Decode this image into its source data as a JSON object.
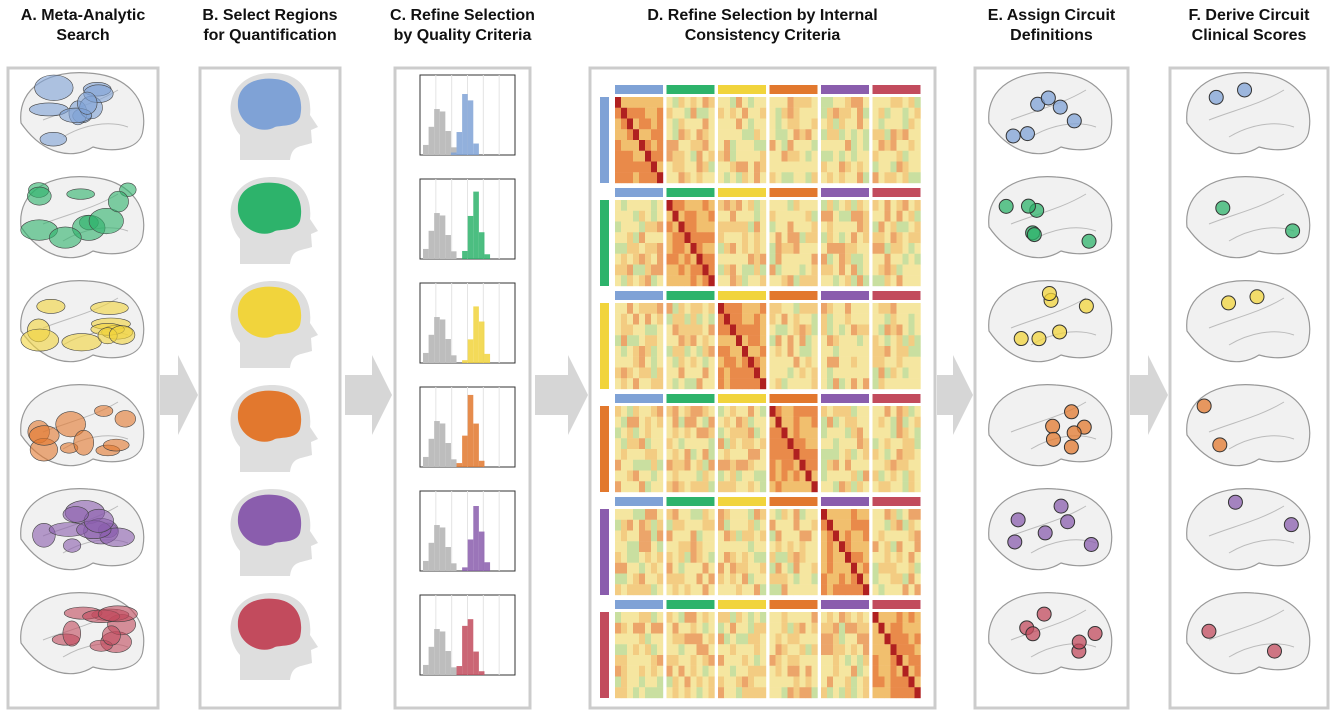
{
  "panels": [
    {
      "title": [
        "A. Meta-Analytic",
        "Search"
      ]
    },
    {
      "title": [
        "B. Select Regions",
        "for Quantification"
      ]
    },
    {
      "title": [
        "C. Refine Selection",
        "by Quality Criteria"
      ]
    },
    {
      "title": [
        "D. Refine Selection by Internal",
        "Consistency Criteria"
      ]
    },
    {
      "title": [
        "E. Assign Circuit",
        "Definitions"
      ]
    },
    {
      "title": [
        "F. Derive Circuit",
        "Clinical Scores"
      ]
    }
  ]
}
